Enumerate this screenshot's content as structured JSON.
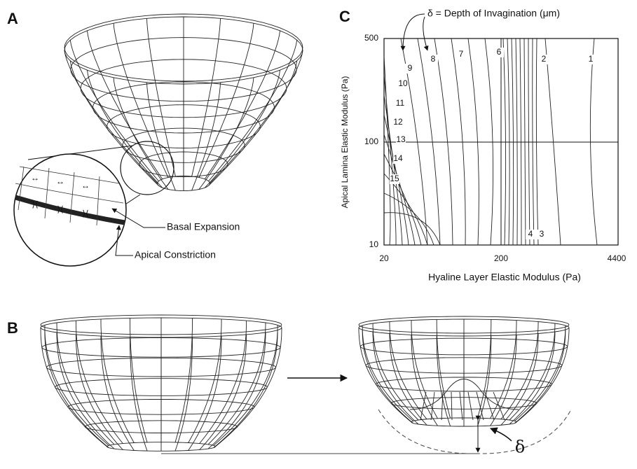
{
  "panel_a": {
    "label": "A",
    "annotations": [
      "Basal Expansion",
      "Apical Constriction"
    ]
  },
  "panel_b": {
    "label": "B",
    "delta_symbol": "δ"
  },
  "panel_c": {
    "label": "C",
    "legend": "δ = Depth of Invagination (μm)",
    "y_axis_label": "Apical Lamina Elastic Modulus (Pa)",
    "x_axis_label": "Hyaline Layer Elastic Modulus (Pa)",
    "y_tick_labels": [
      "500",
      "100",
      "10"
    ],
    "x_tick_labels": [
      "20",
      "200",
      "4400"
    ],
    "contour_labels": [
      "1",
      "2",
      "3",
      "4",
      "6",
      "7",
      "8",
      "9",
      "10",
      "11",
      "12",
      "13",
      "14",
      "15"
    ]
  }
}
